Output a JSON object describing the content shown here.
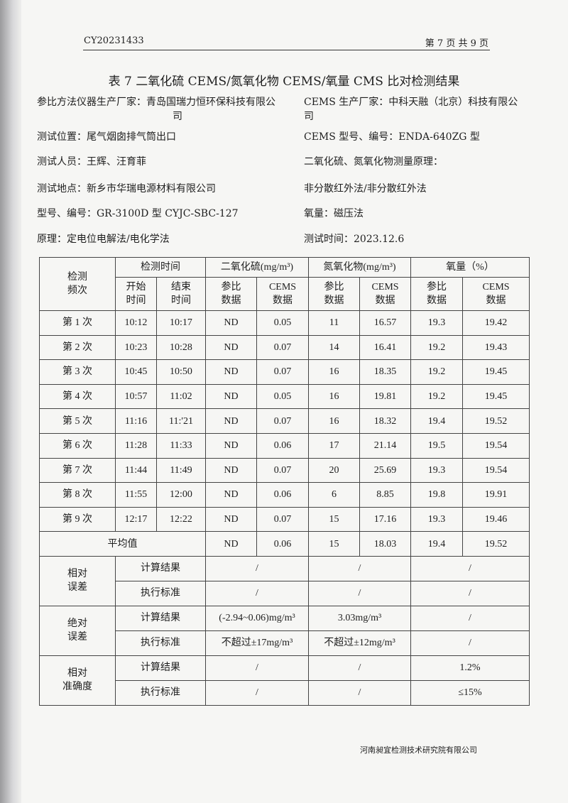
{
  "header": {
    "doc_no": "CY20231433",
    "page": "第 7 页  共 9 页"
  },
  "title": "表 7  二氧化硫 CEMS/氮氧化物 CEMS/氧量 CMS 比对检测结果",
  "info_left": {
    "manufacturer_line1": "参比方法仪器生产厂家：青岛国瑞力恒环保科技有限公",
    "manufacturer_line2": "司",
    "location": "测试位置：尾气烟囱排气筒出口",
    "personnel": "测试人员：王辉、汪育菲",
    "site": "测试地点：新乡市华瑞电源材料有限公司",
    "model": "型号、编号：GR-3100D 型 CYJC-SBC-127",
    "principle": "原理：定电位电解法/电化学法"
  },
  "info_right": {
    "manufacturer_line1": "CEMS 生产厂家：中科天融（北京）科技有限公",
    "manufacturer_line2": "司",
    "model": "CEMS 型号、编号：ENDA-640ZG 型",
    "principle_label": "二氧化硫、氮氧化物测量原理：",
    "principle": "非分散红外法/非分散红外法",
    "oxygen": "氧量：磁压法",
    "test_time": "测试时间：2023.12.6"
  },
  "table": {
    "h_freq": "检测\n频次",
    "h_time": "检测时间",
    "h_so2": "二氧化硫(mg/m³)",
    "h_nox": "氮氧化物(mg/m³)",
    "h_o2": "氧量（%）",
    "h_start": "开始\n时间",
    "h_end": "结束\n时间",
    "h_ref": "参比\n数据",
    "h_cems": "CEMS\n数据",
    "rows": [
      [
        "第 1 次",
        "10:12",
        "10:17",
        "ND",
        "0.05",
        "11",
        "16.57",
        "19.3",
        "19.42"
      ],
      [
        "第 2 次",
        "10:23",
        "10:28",
        "ND",
        "0.07",
        "14",
        "16.41",
        "19.2",
        "19.43"
      ],
      [
        "第 3 次",
        "10:45",
        "10:50",
        "ND",
        "0.07",
        "16",
        "18.35",
        "19.2",
        "19.45"
      ],
      [
        "第 4 次",
        "10:57",
        "11:02",
        "ND",
        "0.05",
        "16",
        "19.81",
        "19.2",
        "19.45"
      ],
      [
        "第 5 次",
        "11:16",
        "11:'21",
        "ND",
        "0.07",
        "16",
        "18.32",
        "19.4",
        "19.52"
      ],
      [
        "第 6 次",
        "11:28",
        "11:33",
        "ND",
        "0.06",
        "17",
        "21.14",
        "19.5",
        "19.54"
      ],
      [
        "第 7 次",
        "11:44",
        "11:49",
        "ND",
        "0.07",
        "20",
        "25.69",
        "19.3",
        "19.54"
      ],
      [
        "第 8 次",
        "11:55",
        "12:00",
        "ND",
        "0.06",
        "6",
        "8.85",
        "19.8",
        "19.91"
      ],
      [
        "第 9 次",
        "12:17",
        "12:22",
        "ND",
        "0.07",
        "15",
        "17.16",
        "19.3",
        "19.46"
      ]
    ],
    "avg": [
      "平均值",
      "ND",
      "0.06",
      "15",
      "18.03",
      "19.4",
      "19.52"
    ],
    "calc": "计算结果",
    "std": "执行标准",
    "rel_err": {
      "label": "相对\n误差",
      "calc": [
        "/",
        "/",
        "/"
      ],
      "std": [
        "/",
        "/",
        "/"
      ]
    },
    "abs_err": {
      "label": "绝对\n误差",
      "calc": [
        "(-2.94~0.06)mg/m³",
        "3.03mg/m³",
        "/"
      ],
      "std": [
        "不超过±17mg/m³",
        "不超过±12mg/m³",
        "/"
      ]
    },
    "rel_acc": {
      "label": "相对\n准确度",
      "calc": [
        "/",
        "/",
        "1.2%"
      ],
      "std": [
        "/",
        "/",
        "≤15%"
      ]
    }
  },
  "footer": "河南昶宜检测技术研究院有限公司"
}
